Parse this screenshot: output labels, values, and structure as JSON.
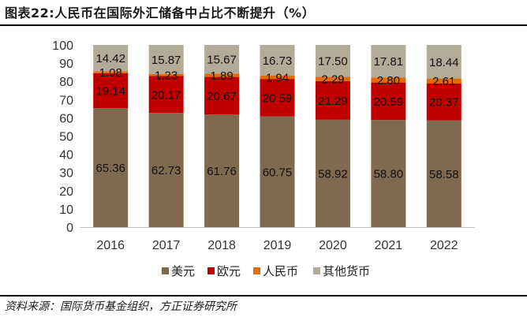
{
  "figure": {
    "title": "图表22:人民币在国际外汇储备中占比不断提升（%）",
    "source": "资料来源：国际货币基金组织，方正证券研究所"
  },
  "chart_data": {
    "type": "bar",
    "stacked": true,
    "title": "图表22:人民币在国际外汇储备中占比不断提升（%）",
    "categories": [
      "2016",
      "2017",
      "2018",
      "2019",
      "2020",
      "2021",
      "2022"
    ],
    "ylim": [
      0,
      100
    ],
    "yticks": [
      0,
      10,
      20,
      30,
      40,
      50,
      60,
      70,
      80,
      90,
      100
    ],
    "legend_position": "bottom",
    "grid": false,
    "series": [
      {
        "name": "美元",
        "color": "#7f6a50",
        "values": [
          65.36,
          62.73,
          61.76,
          60.75,
          58.92,
          58.8,
          58.58
        ],
        "labels": [
          "65.36",
          "62.73",
          "61.76",
          "60.75",
          "58.92",
          "58.80",
          "58.58"
        ]
      },
      {
        "name": "欧元",
        "color": "#c00000",
        "values": [
          19.14,
          20.17,
          20.67,
          20.59,
          21.29,
          20.59,
          20.37
        ],
        "labels": [
          "19.14",
          "20.17",
          "20.67",
          "20.59",
          "21.29",
          "20.59",
          "20.37"
        ]
      },
      {
        "name": "人民币",
        "color": "#e36c09",
        "values": [
          1.08,
          1.23,
          1.89,
          1.94,
          2.29,
          2.8,
          2.61
        ],
        "labels": [
          "1.08",
          "1.23",
          "1.89",
          "1.94",
          "2.29",
          "2.80",
          "2.61"
        ]
      },
      {
        "name": "其他货币",
        "color": "#b3aa98",
        "values": [
          14.42,
          15.87,
          15.67,
          16.73,
          17.5,
          17.81,
          18.44
        ],
        "labels": [
          "14.42",
          "15.87",
          "15.67",
          "16.73",
          "17.50",
          "17.81",
          "18.44"
        ]
      }
    ]
  }
}
